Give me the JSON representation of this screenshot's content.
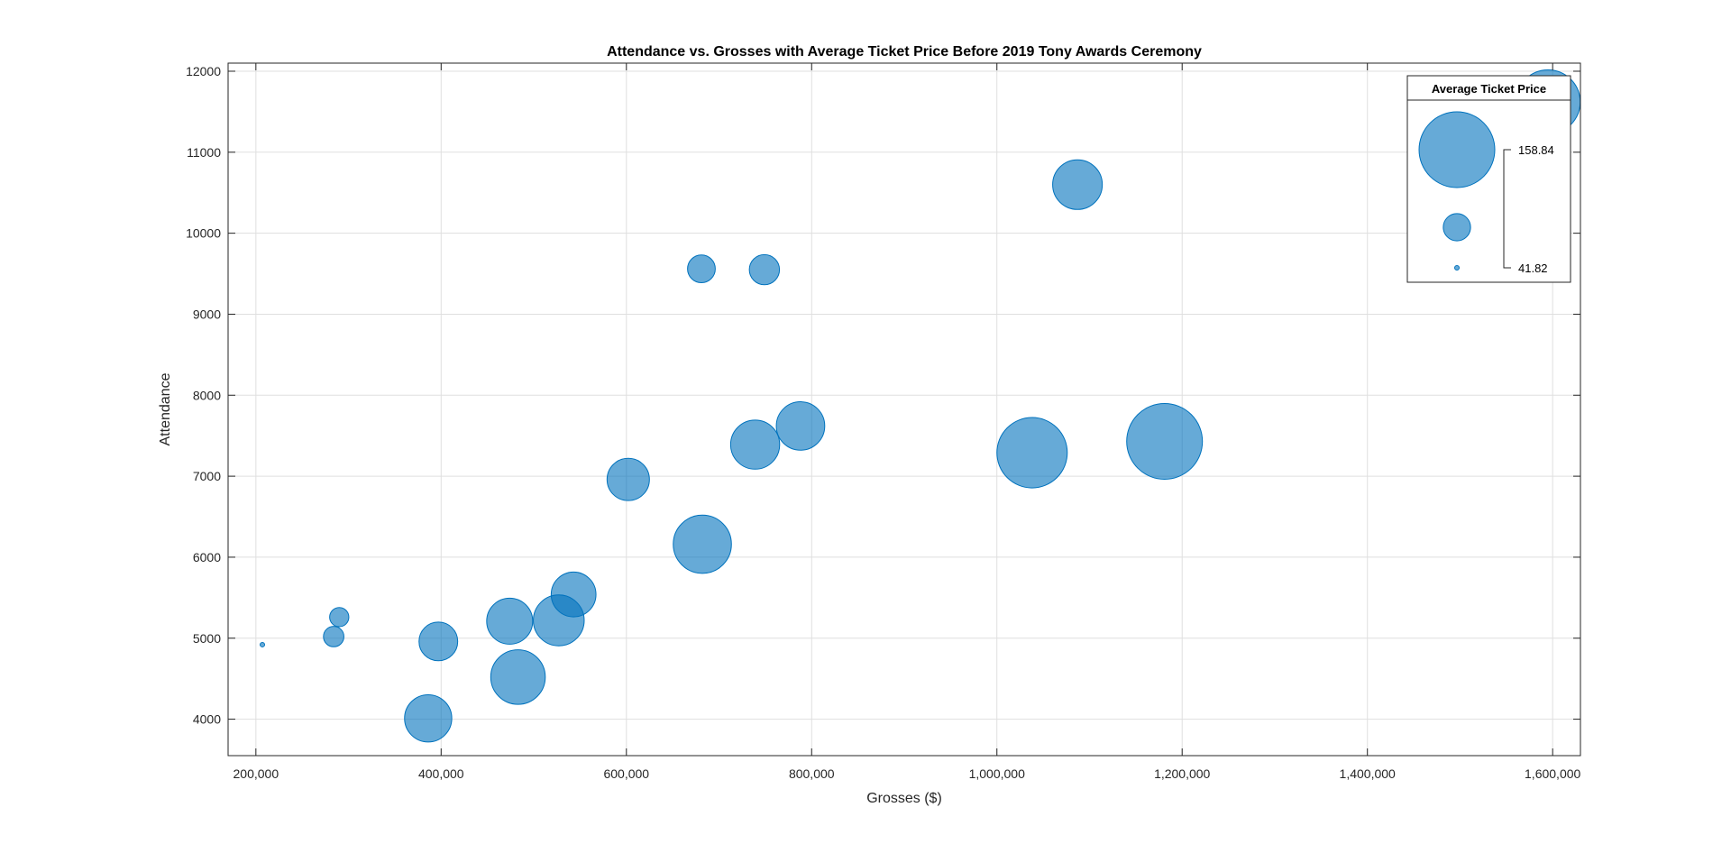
{
  "chart_data": {
    "type": "scatter",
    "title": "Attendance vs. Grosses with Average Ticket Price Before 2019 Tony Awards Ceremony",
    "xlabel": "Grosses ($)",
    "ylabel": "Attendance",
    "xlim": [
      170000,
      1630000
    ],
    "ylim": [
      3550000,
      12100000
    ],
    "xticks": [
      200000,
      400000,
      600000,
      800000,
      1000000,
      1200000,
      1400000,
      1600000
    ],
    "xtick_labels": [
      "200,000",
      "400,000",
      "600,000",
      "800,000",
      "1,000,000",
      "1,200,000",
      "1,400,000",
      "1,600,000"
    ],
    "yticks": [
      4000,
      5000,
      6000,
      7000,
      8000,
      9000,
      10000,
      11000,
      12000
    ],
    "ytick_labels": [
      "4000",
      "5000",
      "6000",
      "7000",
      "8000",
      "9000",
      "10000",
      "11000",
      "12000"
    ],
    "grid": true,
    "size_variable": "Average Ticket Price",
    "size_range": [
      41.82,
      158.84
    ],
    "marker_color": "#0072BD",
    "points": [
      {
        "x": 207000,
        "y": 4920,
        "size": 41.82
      },
      {
        "x": 284000,
        "y": 5020,
        "size": 68
      },
      {
        "x": 290000,
        "y": 5260,
        "size": 66
      },
      {
        "x": 386000,
        "y": 4010,
        "size": 112
      },
      {
        "x": 397000,
        "y": 4960,
        "size": 98
      },
      {
        "x": 474000,
        "y": 5210,
        "size": 110
      },
      {
        "x": 483000,
        "y": 4520,
        "size": 124
      },
      {
        "x": 527000,
        "y": 5220,
        "size": 118
      },
      {
        "x": 543000,
        "y": 5540,
        "size": 108
      },
      {
        "x": 602000,
        "y": 6960,
        "size": 104
      },
      {
        "x": 681000,
        "y": 9560,
        "size": 80
      },
      {
        "x": 682000,
        "y": 6160,
        "size": 130
      },
      {
        "x": 739000,
        "y": 7390,
        "size": 115
      },
      {
        "x": 749000,
        "y": 9550,
        "size": 84
      },
      {
        "x": 788000,
        "y": 7620,
        "size": 114
      },
      {
        "x": 1038000,
        "y": 7290,
        "size": 150
      },
      {
        "x": 1087000,
        "y": 10600,
        "size": 116
      },
      {
        "x": 1181000,
        "y": 7430,
        "size": 158.84
      },
      {
        "x": 1595000,
        "y": 11620,
        "size": 140
      }
    ],
    "legend": {
      "title": "Average Ticket Price",
      "max_label": "158.84",
      "min_label": "41.82",
      "placement": "top-right"
    }
  }
}
